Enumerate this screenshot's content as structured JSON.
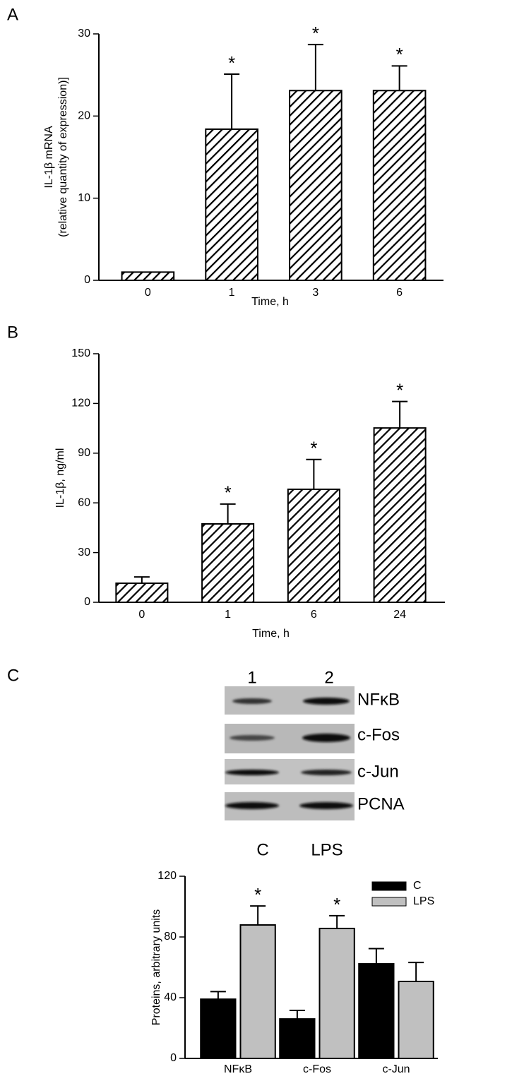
{
  "chart_data": [
    {
      "type": "bar",
      "label": "A",
      "categories": [
        "0",
        "1",
        "3",
        "6"
      ],
      "values": [
        1,
        18.4,
        23.1,
        23.1
      ],
      "errors": [
        null,
        6.7,
        5.6,
        3.0
      ],
      "markers": [
        null,
        "*",
        "*",
        "*"
      ],
      "color": "#000000",
      "pattern": "hatch",
      "xlabel": "Time, h",
      "ylabel": [
        "IL-1β mRNA",
        "(relative quantity of expression)]"
      ],
      "ylim": [
        0,
        30
      ],
      "yticks": [
        0,
        10,
        20,
        30
      ]
    },
    {
      "type": "bar",
      "label": "B",
      "categories": [
        "0",
        "1",
        "6",
        "24"
      ],
      "values": [
        11.5,
        47.3,
        68.2,
        105.2
      ],
      "errors": [
        3.8,
        12,
        18,
        16
      ],
      "markers": [
        null,
        "*",
        "*",
        "*"
      ],
      "color": "#000000",
      "pattern": "hatch",
      "xlabel": "Time, h",
      "ylabel": "IL-1β, ng/ml",
      "ylim": [
        0,
        150
      ],
      "yticks": [
        0,
        30,
        60,
        90,
        120,
        150
      ]
    },
    {
      "type": "grouped_bar",
      "categories": [
        "NFκB",
        "c-Fos",
        "c-Jun"
      ],
      "series": [
        {
          "name": "C",
          "color": "#000000",
          "values": [
            39,
            26,
            62.3
          ],
          "errors": [
            5,
            5.6,
            10
          ],
          "markers": [
            null,
            null,
            null
          ]
        },
        {
          "name": "LPS",
          "color": "#c0c0c0",
          "values": [
            87.9,
            85.6,
            50.7
          ],
          "errors": [
            12.5,
            8.4,
            12.5
          ],
          "markers": [
            "*",
            "*",
            null
          ]
        }
      ],
      "ylabel": "Proteins, arbitrary units",
      "legend": "upper right",
      "ylim": [
        0,
        120
      ],
      "yticks": [
        0,
        40,
        80,
        120
      ]
    }
  ],
  "blot": {
    "label": "C",
    "lanes": [
      "1",
      "2"
    ],
    "proteins": [
      "NFκB",
      "c-Fos",
      "c-Jun",
      "PCNA"
    ],
    "conditions": [
      "C",
      "LPS"
    ]
  }
}
